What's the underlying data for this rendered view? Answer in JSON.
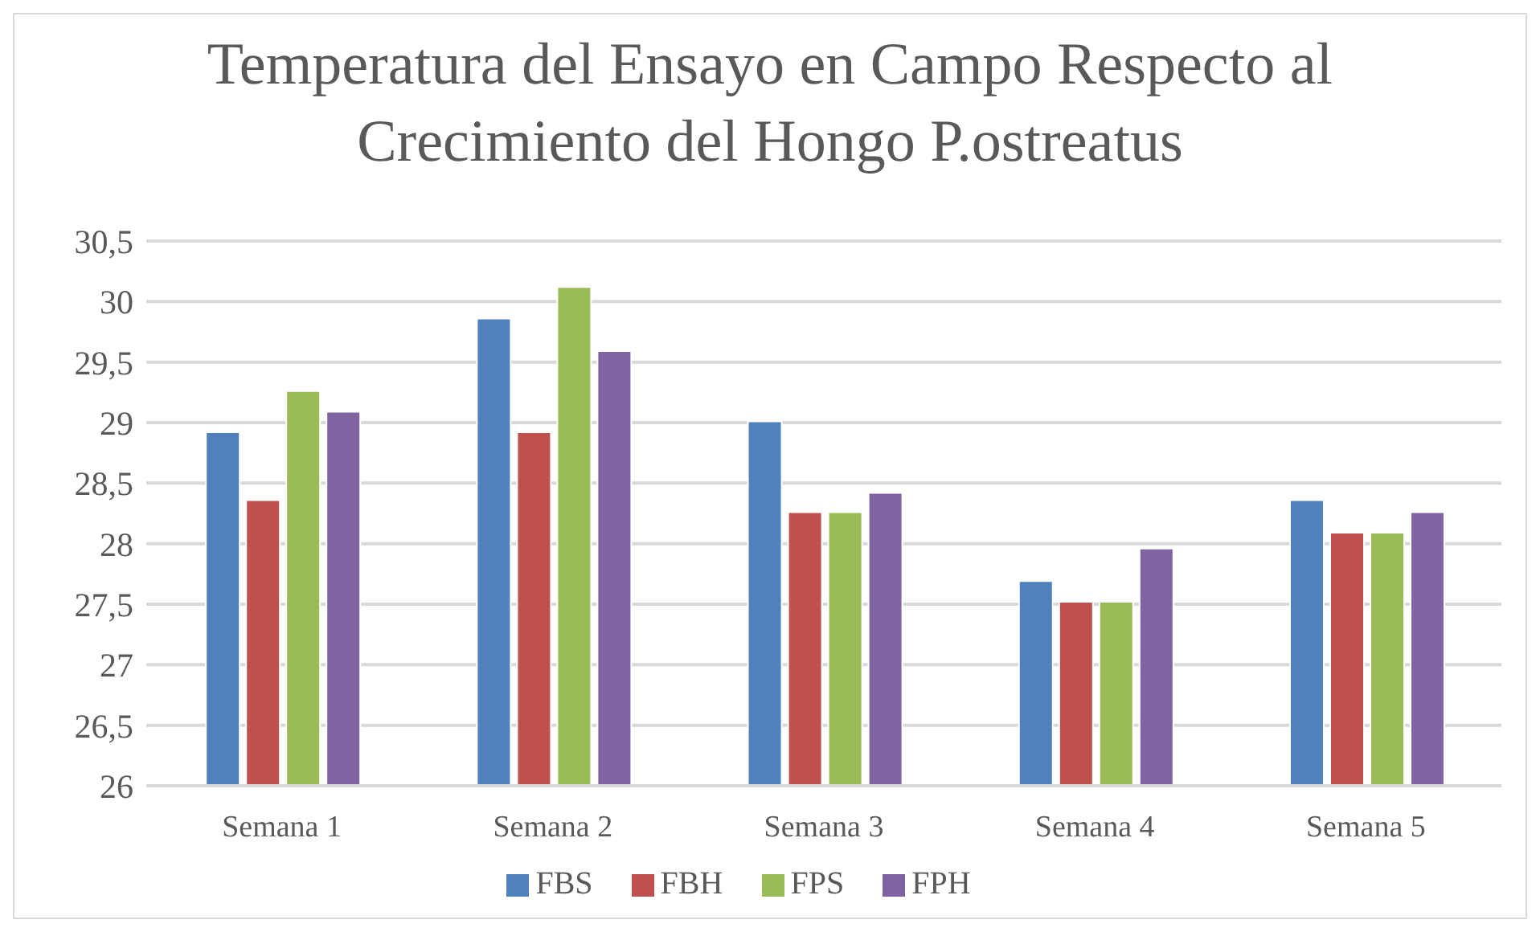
{
  "chart_data": {
    "type": "bar",
    "title": "Temperatura del Ensayo en Campo Respecto al Crecimiento del Hongo P.ostreatus",
    "categories": [
      "Semana 1",
      "Semana 2",
      "Semana 3",
      "Semana 4",
      "Semana 5"
    ],
    "series": [
      {
        "name": "FBS",
        "color": "#4f81bd",
        "values": [
          28.92,
          29.86,
          29.01,
          27.69,
          28.36
        ]
      },
      {
        "name": "FBH",
        "color": "#c0504d",
        "values": [
          28.36,
          28.92,
          28.26,
          27.52,
          28.09
        ]
      },
      {
        "name": "FPS",
        "color": "#9bbb59",
        "values": [
          29.26,
          30.12,
          28.26,
          27.52,
          28.09
        ]
      },
      {
        "name": "FPH",
        "color": "#8064a2",
        "values": [
          29.09,
          29.59,
          28.42,
          27.96,
          28.26
        ]
      }
    ],
    "ylim": [
      26,
      30.5
    ],
    "yticks": [
      {
        "value": 26,
        "label": "26"
      },
      {
        "value": 26.5,
        "label": "26,5"
      },
      {
        "value": 27,
        "label": "27"
      },
      {
        "value": 27.5,
        "label": "27,5"
      },
      {
        "value": 28,
        "label": "28"
      },
      {
        "value": 28.5,
        "label": "28,5"
      },
      {
        "value": 29,
        "label": "29"
      },
      {
        "value": 29.5,
        "label": "29,5"
      },
      {
        "value": 30,
        "label": "30"
      },
      {
        "value": 30.5,
        "label": "30,5"
      }
    ],
    "grid": "y",
    "legend": "bottom"
  }
}
